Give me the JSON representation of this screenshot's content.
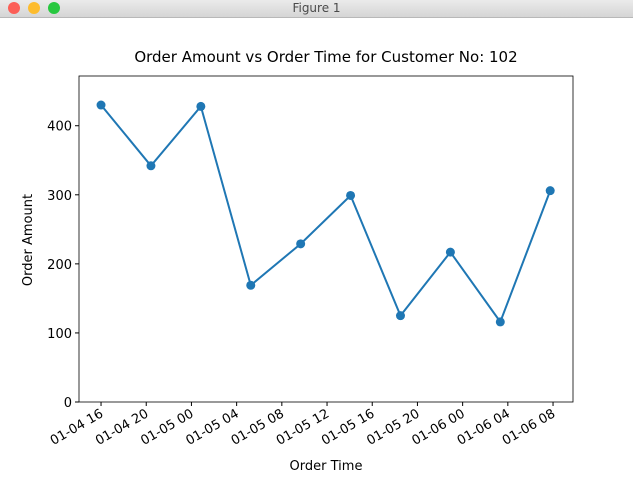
{
  "window": {
    "title": "Figure 1"
  },
  "chart_data": {
    "type": "line",
    "title": "Order Amount vs Order Time for Customer No: 102",
    "xlabel": "Order Time",
    "ylabel": "Order Amount",
    "x": [
      "01-04 16:00",
      "01-04 20:25",
      "01-05 00:50",
      "01-05 05:15",
      "01-05 09:40",
      "01-05 14:05",
      "01-05 18:30",
      "01-05 22:55",
      "01-06 03:20",
      "01-06 07:45"
    ],
    "series": [
      {
        "name": "Order Amount",
        "color": "#1f77b4",
        "values": [
          430,
          342,
          428,
          169,
          229,
          299,
          125,
          217,
          116,
          306
        ]
      }
    ],
    "xlim": [
      "01-04 14:03",
      "01-06 09:46"
    ],
    "xticks": [
      "01-04 16",
      "01-04 20",
      "01-05 00",
      "01-05 04",
      "01-05 08",
      "01-05 12",
      "01-05 16",
      "01-05 20",
      "01-06 00",
      "01-06 04",
      "01-06 08"
    ],
    "ylim": [
      0,
      472
    ],
    "yticks": [
      0,
      100,
      200,
      300,
      400
    ],
    "markers": true
  }
}
